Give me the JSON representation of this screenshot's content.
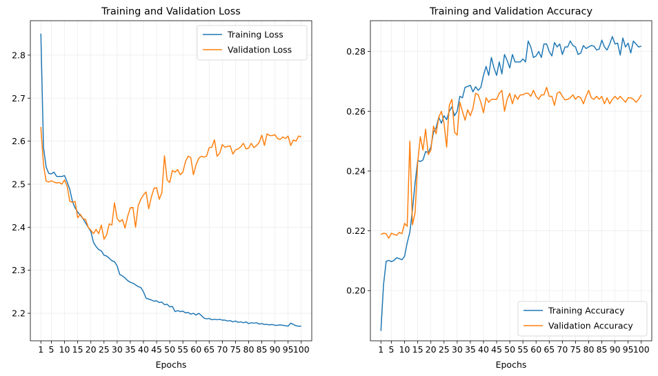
{
  "chart_data": [
    {
      "type": "line",
      "title": "Training and Validation Loss",
      "xlabel": "Epochs",
      "ylabel": "",
      "xlim": [
        -3,
        104
      ],
      "ylim": [
        2.136,
        2.88
      ],
      "xticks": [
        1,
        5,
        10,
        15,
        20,
        25,
        30,
        35,
        40,
        45,
        50,
        55,
        60,
        65,
        70,
        75,
        80,
        85,
        90,
        95,
        100
      ],
      "yticks": [
        2.2,
        2.3,
        2.4,
        2.5,
        2.6,
        2.7,
        2.8
      ],
      "ytick_labels": [
        "2.2",
        "2.3",
        "2.4",
        "2.5",
        "2.6",
        "2.7",
        "2.8"
      ],
      "grid": true,
      "legend_position": "upper right",
      "series": [
        {
          "name": "Training Loss",
          "color": "#1f77b4",
          "x_start": 1,
          "values": [
            2.85,
            2.585,
            2.54,
            2.525,
            2.524,
            2.528,
            2.518,
            2.518,
            2.518,
            2.52,
            2.505,
            2.488,
            2.46,
            2.445,
            2.435,
            2.428,
            2.42,
            2.41,
            2.4,
            2.39,
            2.365,
            2.355,
            2.348,
            2.345,
            2.335,
            2.333,
            2.328,
            2.322,
            2.32,
            2.31,
            2.29,
            2.287,
            2.282,
            2.276,
            2.272,
            2.27,
            2.266,
            2.262,
            2.26,
            2.25,
            2.235,
            2.233,
            2.231,
            2.228,
            2.229,
            2.225,
            2.226,
            2.22,
            2.221,
            2.215,
            2.216,
            2.204,
            2.206,
            2.204,
            2.205,
            2.201,
            2.202,
            2.198,
            2.2,
            2.196,
            2.2,
            2.195,
            2.189,
            2.187,
            2.188,
            2.185,
            2.186,
            2.185,
            2.186,
            2.184,
            2.184,
            2.182,
            2.183,
            2.18,
            2.182,
            2.179,
            2.18,
            2.178,
            2.18,
            2.176,
            2.178,
            2.177,
            2.178,
            2.175,
            2.176,
            2.174,
            2.174,
            2.173,
            2.174,
            2.172,
            2.172,
            2.173,
            2.172,
            2.171,
            2.17,
            2.177,
            2.174,
            2.171,
            2.17,
            2.17
          ]
        },
        {
          "name": "Validation Loss",
          "color": "#ff7f0e",
          "x_start": 1,
          "values": [
            2.633,
            2.545,
            2.507,
            2.505,
            2.508,
            2.505,
            2.503,
            2.504,
            2.5,
            2.51,
            2.495,
            2.46,
            2.458,
            2.46,
            2.422,
            2.43,
            2.42,
            2.418,
            2.4,
            2.393,
            2.385,
            2.395,
            2.385,
            2.405,
            2.372,
            2.382,
            2.408,
            2.405,
            2.457,
            2.42,
            2.413,
            2.418,
            2.398,
            2.425,
            2.445,
            2.446,
            2.4,
            2.45,
            2.465,
            2.475,
            2.482,
            2.443,
            2.47,
            2.49,
            2.492,
            2.465,
            2.48,
            2.566,
            2.51,
            2.504,
            2.532,
            2.528,
            2.534,
            2.522,
            2.528,
            2.553,
            2.565,
            2.562,
            2.522,
            2.545,
            2.56,
            2.565,
            2.563,
            2.565,
            2.585,
            2.586,
            2.603,
            2.565,
            2.572,
            2.592,
            2.586,
            2.588,
            2.589,
            2.57,
            2.58,
            2.582,
            2.587,
            2.595,
            2.582,
            2.584,
            2.595,
            2.585,
            2.59,
            2.597,
            2.614,
            2.59,
            2.617,
            2.613,
            2.613,
            2.615,
            2.606,
            2.604,
            2.61,
            2.606,
            2.612,
            2.59,
            2.603,
            2.6,
            2.612,
            2.61
          ]
        }
      ]
    },
    {
      "type": "line",
      "title": "Training and Validation Accuracy",
      "xlabel": "Epochs",
      "ylabel": "",
      "xlim": [
        -3,
        104
      ],
      "ylim": [
        0.1832,
        0.2903
      ],
      "xticks": [
        1,
        5,
        10,
        15,
        20,
        25,
        30,
        35,
        40,
        45,
        50,
        55,
        60,
        65,
        70,
        75,
        80,
        85,
        90,
        95,
        100
      ],
      "yticks": [
        0.2,
        0.22,
        0.24,
        0.26,
        0.28
      ],
      "ytick_labels": [
        "0.20",
        "0.22",
        "0.24",
        "0.26",
        "0.28"
      ],
      "grid": true,
      "legend_position": "lower right",
      "series": [
        {
          "name": "Training Accuracy",
          "color": "#1f77b4",
          "x_start": 1,
          "values": [
            0.1865,
            0.202,
            0.2098,
            0.2101,
            0.2097,
            0.2101,
            0.211,
            0.2107,
            0.2103,
            0.2115,
            0.216,
            0.2195,
            0.227,
            0.236,
            0.2435,
            0.2432,
            0.2437,
            0.2465,
            0.2462,
            0.248,
            0.253,
            0.2545,
            0.258,
            0.256,
            0.2585,
            0.2572,
            0.26,
            0.2615,
            0.2585,
            0.26,
            0.265,
            0.2645,
            0.268,
            0.2683,
            0.2687,
            0.2665,
            0.2682,
            0.267,
            0.268,
            0.272,
            0.275,
            0.272,
            0.278,
            0.2745,
            0.272,
            0.2765,
            0.2725,
            0.279,
            0.277,
            0.2745,
            0.279,
            0.2765,
            0.2765,
            0.2765,
            0.2775,
            0.2765,
            0.2835,
            0.2815,
            0.278,
            0.2785,
            0.28,
            0.278,
            0.2825,
            0.2825,
            0.28,
            0.2785,
            0.283,
            0.2815,
            0.2825,
            0.279,
            0.2815,
            0.2815,
            0.2835,
            0.282,
            0.2815,
            0.279,
            0.2795,
            0.282,
            0.281,
            0.2815,
            0.282,
            0.2818,
            0.2805,
            0.2808,
            0.2838,
            0.2815,
            0.2805,
            0.2825,
            0.285,
            0.2825,
            0.2828,
            0.2788,
            0.2845,
            0.2815,
            0.2828,
            0.2795,
            0.2835,
            0.2825,
            0.2815,
            0.2818
          ]
        },
        {
          "name": "Validation Accuracy",
          "color": "#ff7f0e",
          "x_start": 1,
          "values": [
            0.2188,
            0.2192,
            0.219,
            0.2175,
            0.2192,
            0.2188,
            0.2185,
            0.2195,
            0.219,
            0.2225,
            0.2215,
            0.25,
            0.222,
            0.226,
            0.243,
            0.2515,
            0.247,
            0.254,
            0.2455,
            0.247,
            0.255,
            0.2525,
            0.258,
            0.26,
            0.256,
            0.248,
            0.262,
            0.264,
            0.253,
            0.252,
            0.263,
            0.26,
            0.257,
            0.2605,
            0.2585,
            0.261,
            0.266,
            0.2655,
            0.263,
            0.2595,
            0.2645,
            0.263,
            0.264,
            0.264,
            0.264,
            0.266,
            0.267,
            0.26,
            0.264,
            0.266,
            0.2625,
            0.2655,
            0.264,
            0.2655,
            0.2655,
            0.266,
            0.266,
            0.265,
            0.267,
            0.265,
            0.264,
            0.2655,
            0.2655,
            0.268,
            0.265,
            0.265,
            0.262,
            0.266,
            0.2665,
            0.265,
            0.2638,
            0.264,
            0.2645,
            0.2655,
            0.264,
            0.265,
            0.2645,
            0.2625,
            0.265,
            0.267,
            0.2645,
            0.264,
            0.265,
            0.264,
            0.265,
            0.2625,
            0.2645,
            0.2625,
            0.264,
            0.265,
            0.264,
            0.265,
            0.264,
            0.263,
            0.2645,
            0.2645,
            0.264,
            0.263,
            0.264,
            0.2655
          ]
        }
      ]
    }
  ]
}
